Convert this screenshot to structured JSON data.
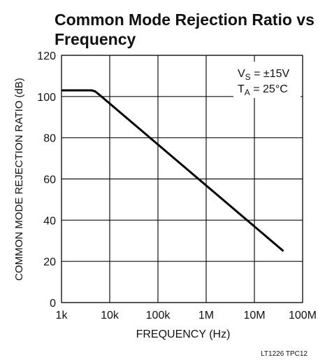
{
  "chart_data": {
    "type": "line",
    "title_line1": "Common Mode Rejection Ratio vs",
    "title_line2": "Frequency",
    "xlabel": "FREQUENCY (Hz)",
    "ylabel": "COMMON MODE REJECTION RATIO (dB)",
    "x_scale": "log",
    "xlim": [
      1000,
      100000000
    ],
    "ylim": [
      0,
      120
    ],
    "x_ticks": [
      {
        "value": 1000,
        "label": "1k"
      },
      {
        "value": 10000,
        "label": "10k"
      },
      {
        "value": 100000,
        "label": "100k"
      },
      {
        "value": 1000000,
        "label": "1M"
      },
      {
        "value": 10000000,
        "label": "10M"
      },
      {
        "value": 100000000,
        "label": "100M"
      }
    ],
    "y_ticks": [
      0,
      20,
      40,
      60,
      80,
      100,
      120
    ],
    "grid": true,
    "series": [
      {
        "x": [
          1000,
          3000,
          4200,
          5000,
          6000,
          40000000
        ],
        "y": [
          103,
          103,
          103,
          102.5,
          101,
          25
        ]
      }
    ],
    "annotation": {
      "line1_main": "V",
      "line1_sub": "S",
      "line1_rest": " = ±15V",
      "line2_main": "T",
      "line2_sub": "A",
      "line2_rest": " = 25°C"
    },
    "footnote": "LT1226 TPC12",
    "color": "#000000"
  }
}
